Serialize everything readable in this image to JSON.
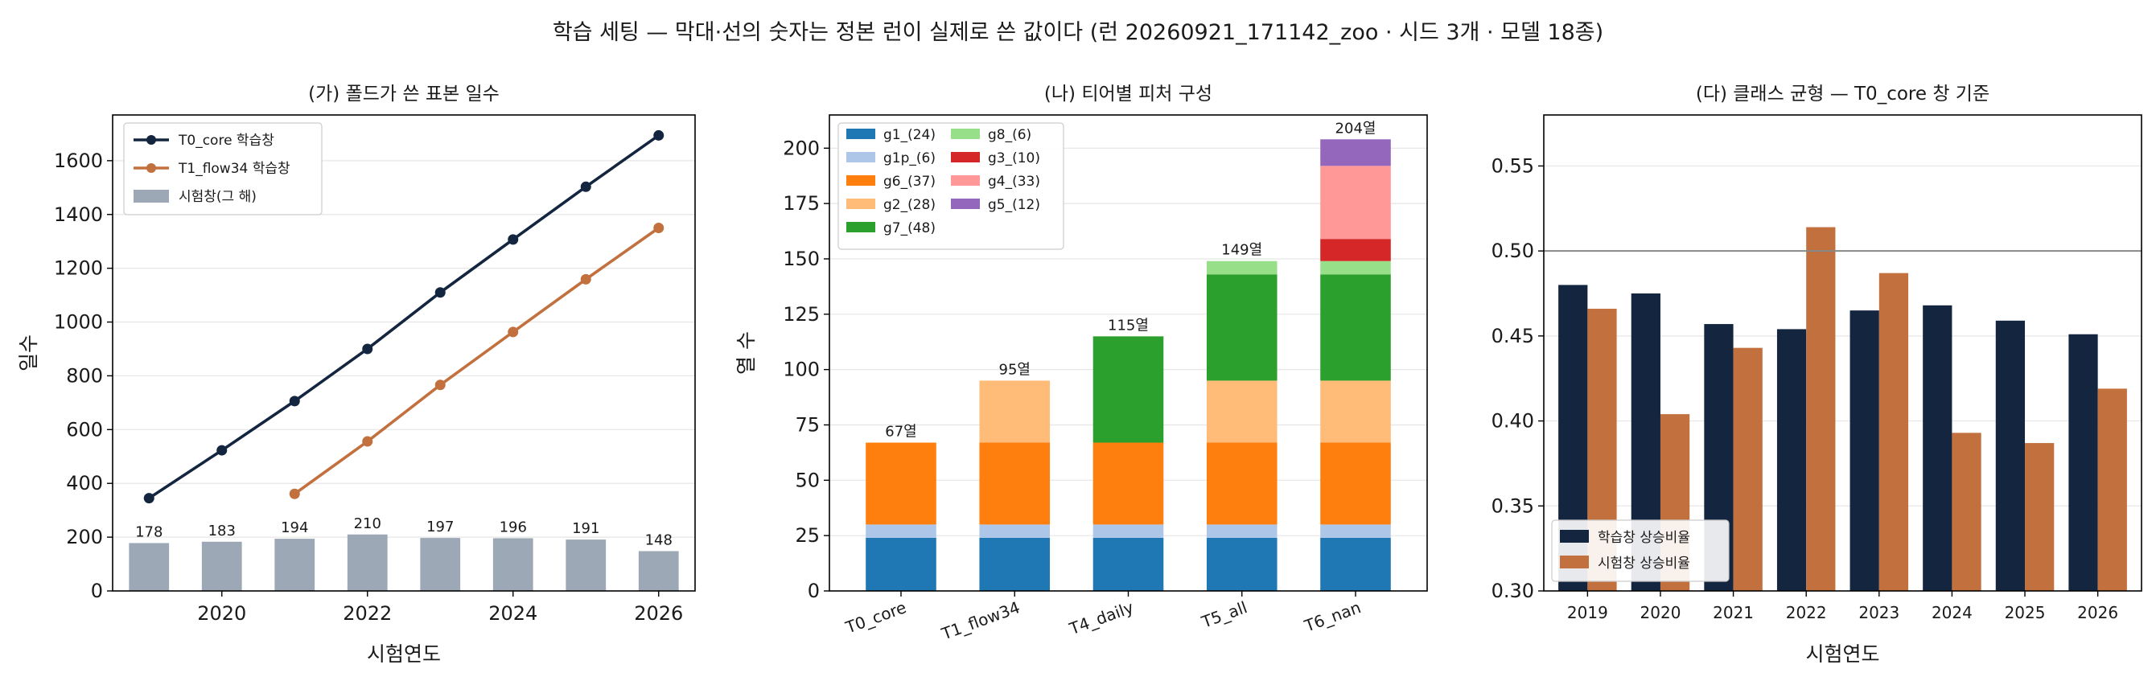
{
  "suptitle": "학습 세팅 — 막대·선의 숫자는 정본 런이 실제로 쓴 값이다 (런 20260921_171142_zoo · 시드 3개 · 모델 18종)",
  "colors": {
    "navy": "#13253f",
    "orange": "#c2703d",
    "gray": "#9ca8b5",
    "gridline": "#e6e6e6",
    "refline": "#888888"
  },
  "chart_data": [
    {
      "type": "line+bar",
      "title": "(가) 폴드가 쓴 표본 일수",
      "xlabel": "시험연도",
      "ylabel": "일수",
      "xlim": [
        2018.5,
        2026.5
      ],
      "ylim": [
        0,
        1770
      ],
      "xticks": [
        "2020",
        "2022",
        "2024",
        "2026"
      ],
      "yticks": [
        "0",
        "200",
        "400",
        "600",
        "800",
        "1000",
        "1200",
        "1400",
        "1600"
      ],
      "grid": "y",
      "legend_position": "top-left",
      "bars": {
        "name": "시험창(그 해)",
        "x": [
          2019,
          2020,
          2021,
          2022,
          2023,
          2024,
          2025,
          2026
        ],
        "values": [
          178,
          183,
          194,
          210,
          197,
          196,
          191,
          148
        ],
        "labels": [
          "178",
          "183",
          "194",
          "210",
          "197",
          "196",
          "191",
          "148"
        ]
      },
      "series": [
        {
          "name": "T0_core 학습창",
          "x": [
            2019,
            2020,
            2021,
            2022,
            2023,
            2024,
            2025,
            2026
          ],
          "values": [
            345,
            523,
            706,
            900,
            1110,
            1307,
            1503,
            1694
          ]
        },
        {
          "name": "T1_flow34 학습창",
          "x": [
            2021,
            2022,
            2023,
            2024,
            2025,
            2026
          ],
          "values": [
            361,
            556,
            766,
            963,
            1159,
            1350
          ]
        }
      ]
    },
    {
      "type": "stacked-bar",
      "title": "(나) 티어별 피처 구성",
      "xlabel": "",
      "ylabel": "열 수",
      "ylim": [
        0,
        215
      ],
      "yticks": [
        "0",
        "25",
        "50",
        "75",
        "100",
        "125",
        "150",
        "175",
        "200"
      ],
      "grid": "y",
      "legend_position": "top-left",
      "categories": [
        "T0_core",
        "T1_flow34",
        "T4_daily",
        "T5_all",
        "T6_nan"
      ],
      "totals": [
        "67열",
        "95열",
        "115열",
        "149열",
        "204열"
      ],
      "series": [
        {
          "name": "g1_(24)",
          "color": "#1f77b4",
          "values": [
            24,
            24,
            24,
            24,
            24
          ]
        },
        {
          "name": "g1p_(6)",
          "color": "#aec7e8",
          "values": [
            6,
            6,
            6,
            6,
            6
          ]
        },
        {
          "name": "g6_(37)",
          "color": "#ff7f0e",
          "values": [
            37,
            37,
            37,
            37,
            37
          ]
        },
        {
          "name": "g2_(28)",
          "color": "#ffbb78",
          "values": [
            0,
            28,
            0,
            28,
            28
          ]
        },
        {
          "name": "g7_(48)",
          "color": "#2ca02c",
          "values": [
            0,
            0,
            48,
            48,
            48
          ]
        },
        {
          "name": "g8_(6)",
          "color": "#98df8a",
          "values": [
            0,
            0,
            0,
            6,
            6
          ]
        },
        {
          "name": "g3_(10)",
          "color": "#d62728",
          "values": [
            0,
            0,
            0,
            0,
            10
          ]
        },
        {
          "name": "g4_(33)",
          "color": "#ff9896",
          "values": [
            0,
            0,
            0,
            0,
            33
          ]
        },
        {
          "name": "g5_(12)",
          "color": "#9467bd",
          "values": [
            0,
            0,
            0,
            0,
            12
          ]
        }
      ]
    },
    {
      "type": "grouped-bar",
      "title": "(다) 클래스 균형 — T0_core 창 기준",
      "xlabel": "시험연도",
      "ylabel": "",
      "ylim": [
        0.3,
        0.58
      ],
      "yticks": [
        "0.30",
        "0.35",
        "0.40",
        "0.45",
        "0.50",
        "0.55"
      ],
      "reference_line": 0.5,
      "grid": "y",
      "legend_position": "bottom-left",
      "categories": [
        "2019",
        "2020",
        "2021",
        "2022",
        "2023",
        "2024",
        "2025",
        "2026"
      ],
      "series": [
        {
          "name": "학습창 상승비율",
          "values": [
            0.48,
            0.475,
            0.457,
            0.454,
            0.465,
            0.468,
            0.459,
            0.451
          ]
        },
        {
          "name": "시험창 상승비율",
          "values": [
            0.466,
            0.404,
            0.443,
            0.514,
            0.487,
            0.393,
            0.387,
            0.419
          ]
        }
      ]
    }
  ]
}
